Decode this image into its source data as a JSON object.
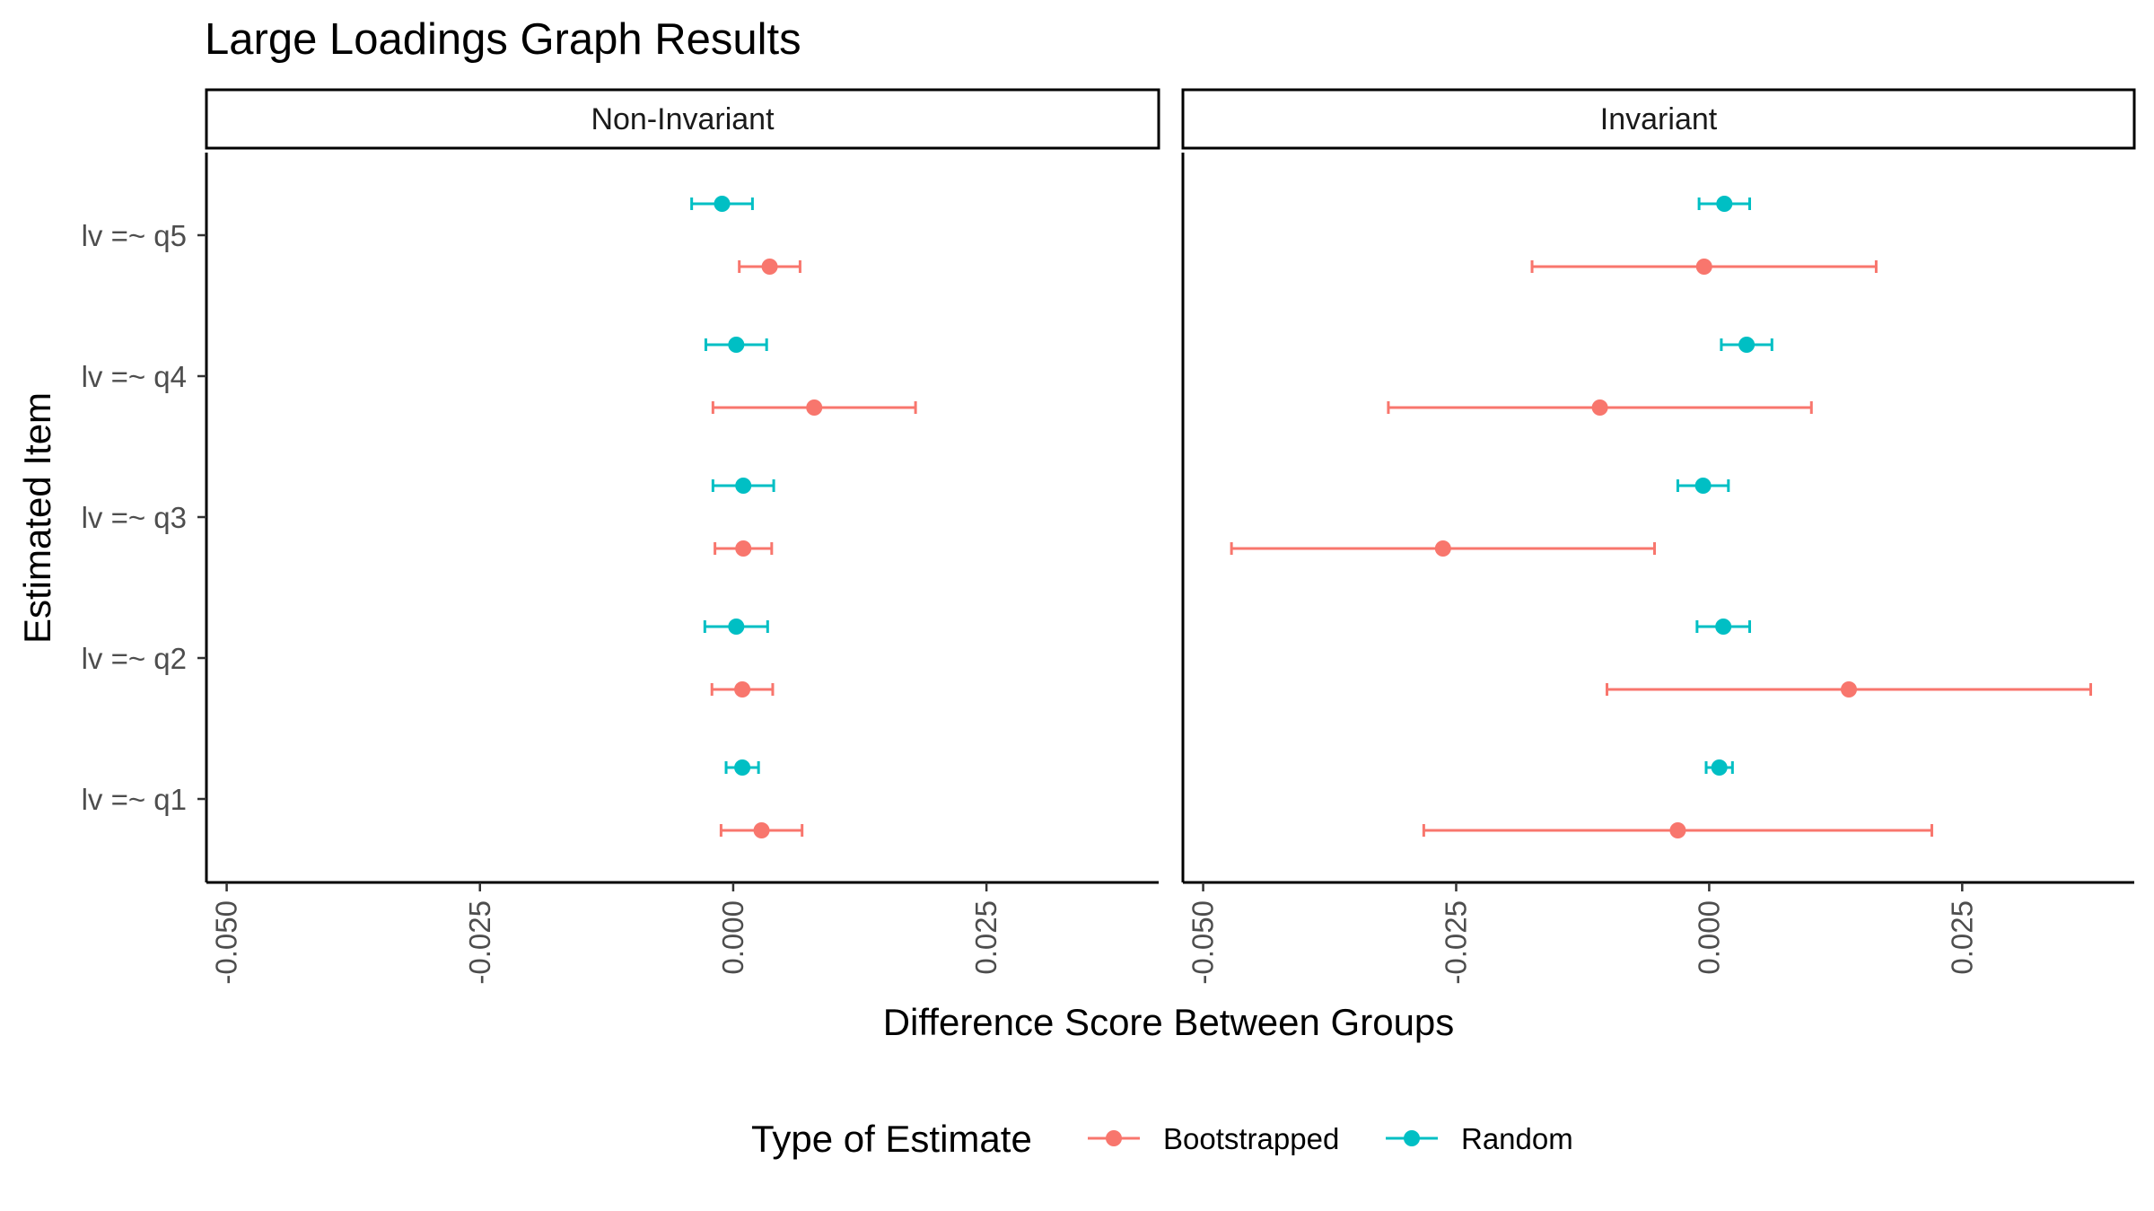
{
  "chart_data": {
    "type": "scatter",
    "title": "Large Loadings Graph Results",
    "xlabel": "Difference Score Between Groups",
    "ylabel": "Estimated Item",
    "items": [
      "lv =~ q1",
      "lv =~ q2",
      "lv =~ q3",
      "lv =~ q4",
      "lv =~ q5"
    ],
    "xlim": [
      -0.052,
      0.042
    ],
    "x_ticks": [
      -0.05,
      -0.025,
      0.0,
      0.025
    ],
    "x_tick_labels": [
      "-0.050",
      "-0.025",
      "0.000",
      "0.025"
    ],
    "legend": {
      "title": "Type of Estimate",
      "position": "bottom",
      "entries": [
        {
          "name": "Bootstrapped",
          "color": "#F8766D"
        },
        {
          "name": "Random",
          "color": "#00BFC4"
        }
      ]
    },
    "panels": [
      {
        "label": "Non-Invariant",
        "series": [
          {
            "name": "Bootstrapped",
            "color": "#F8766D",
            "points": [
              {
                "item": "lv =~ q1",
                "est": 0.0028,
                "lo": -0.0012,
                "hi": 0.0068
              },
              {
                "item": "lv =~ q2",
                "est": 0.0009,
                "lo": -0.0021,
                "hi": 0.0039
              },
              {
                "item": "lv =~ q3",
                "est": 0.001,
                "lo": -0.0018,
                "hi": 0.0038
              },
              {
                "item": "lv =~ q4",
                "est": 0.008,
                "lo": -0.002,
                "hi": 0.018
              },
              {
                "item": "lv =~ q5",
                "est": 0.0036,
                "lo": 0.0006,
                "hi": 0.0066
              }
            ]
          },
          {
            "name": "Random",
            "color": "#00BFC4",
            "points": [
              {
                "item": "lv =~ q1",
                "est": 0.0009,
                "lo": -0.0007,
                "hi": 0.0025
              },
              {
                "item": "lv =~ q2",
                "est": 0.0003,
                "lo": -0.0028,
                "hi": 0.0034
              },
              {
                "item": "lv =~ q3",
                "est": 0.001,
                "lo": -0.002,
                "hi": 0.004
              },
              {
                "item": "lv =~ q4",
                "est": 0.0003,
                "lo": -0.0027,
                "hi": 0.0033
              },
              {
                "item": "lv =~ q5",
                "est": -0.0011,
                "lo": -0.0041,
                "hi": 0.0019
              }
            ]
          }
        ]
      },
      {
        "label": "Invariant",
        "series": [
          {
            "name": "Bootstrapped",
            "color": "#F8766D",
            "points": [
              {
                "item": "lv =~ q1",
                "est": -0.0031,
                "lo": -0.0282,
                "hi": 0.022
              },
              {
                "item": "lv =~ q2",
                "est": 0.0138,
                "lo": -0.0101,
                "hi": 0.0377
              },
              {
                "item": "lv =~ q3",
                "est": -0.0263,
                "lo": -0.0472,
                "hi": -0.0054
              },
              {
                "item": "lv =~ q4",
                "est": -0.0108,
                "lo": -0.0317,
                "hi": 0.0101
              },
              {
                "item": "lv =~ q5",
                "est": -0.0005,
                "lo": -0.0175,
                "hi": 0.0165
              }
            ]
          },
          {
            "name": "Random",
            "color": "#00BFC4",
            "points": [
              {
                "item": "lv =~ q1",
                "est": 0.001,
                "lo": -0.0003,
                "hi": 0.0023
              },
              {
                "item": "lv =~ q2",
                "est": 0.0014,
                "lo": -0.0012,
                "hi": 0.004
              },
              {
                "item": "lv =~ q3",
                "est": -0.0006,
                "lo": -0.0031,
                "hi": 0.0019
              },
              {
                "item": "lv =~ q4",
                "est": 0.0037,
                "lo": 0.0012,
                "hi": 0.0062
              },
              {
                "item": "lv =~ q5",
                "est": 0.0015,
                "lo": -0.001,
                "hi": 0.004
              }
            ]
          }
        ]
      }
    ]
  }
}
